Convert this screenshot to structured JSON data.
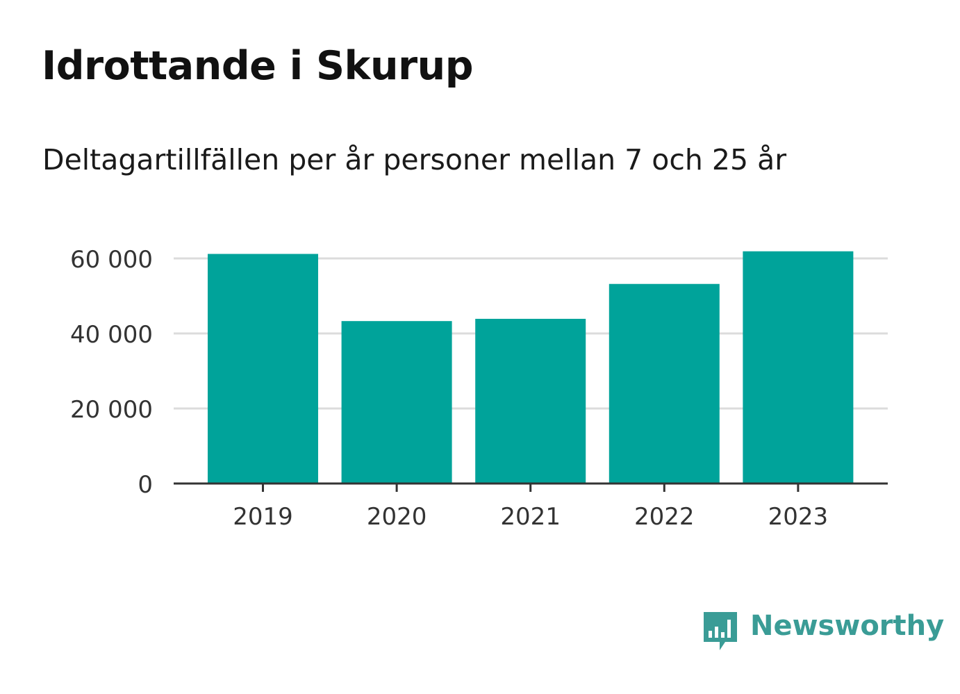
{
  "header": {
    "title": "Idrottande i Skurup",
    "subtitle": "Deltagartillfällen per år personer mellan 7 och 25 år"
  },
  "chart_data": {
    "type": "bar",
    "categories": [
      "2019",
      "2020",
      "2021",
      "2022",
      "2023"
    ],
    "values": [
      61200,
      43300,
      43900,
      53200,
      61900
    ],
    "yticks": [
      0,
      20000,
      40000,
      60000
    ],
    "ytick_labels": [
      "0",
      "20 000",
      "40 000",
      "60 000"
    ],
    "ylim": [
      0,
      60000
    ],
    "grid": true,
    "bar_color": "#00a39a",
    "title": "Idrottande i Skurup",
    "xlabel": "",
    "ylabel": ""
  },
  "brand": {
    "name": "Newsworthy",
    "color": "#3a9c96",
    "icon": "bar-chart-bubble-icon"
  }
}
